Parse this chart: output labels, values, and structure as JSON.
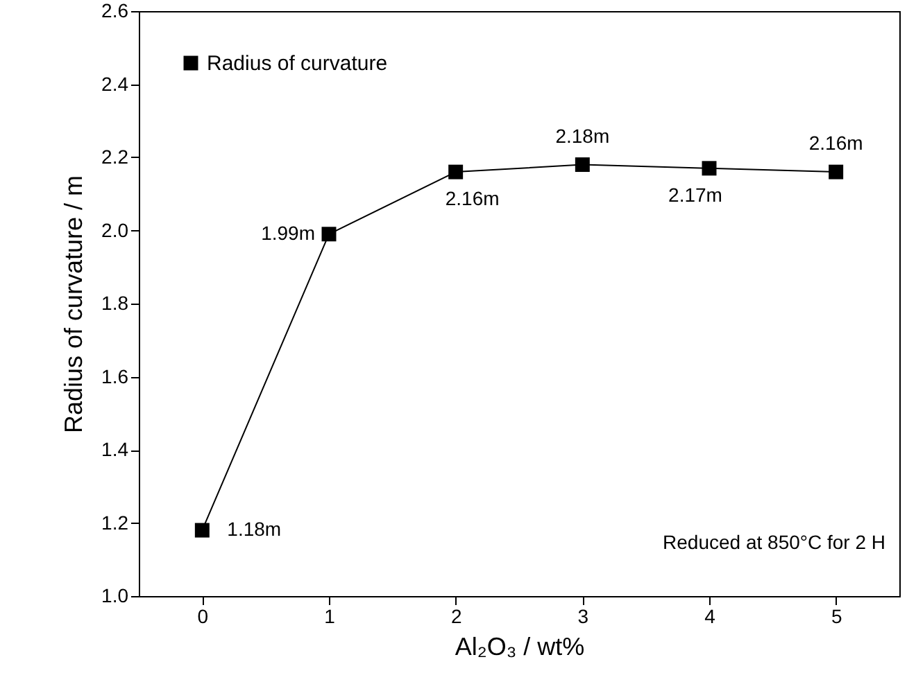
{
  "chart_data": {
    "type": "line",
    "xlabel": "Al₂O₃ / wt%",
    "ylabel": "Radius of curvature / m",
    "x": [
      0,
      1,
      2,
      3,
      4,
      5
    ],
    "series": [
      {
        "name": "Radius of curvature",
        "color": "#000000",
        "values": [
          1.18,
          1.99,
          2.16,
          2.18,
          2.17,
          2.16
        ],
        "value_labels": [
          "1.18m",
          "1.99m",
          "2.16m",
          "2.18m",
          "2.17m",
          "2.16m"
        ]
      }
    ],
    "xlim": [
      -0.5,
      5.5
    ],
    "xticks": [
      0,
      1,
      2,
      3,
      4,
      5
    ],
    "ylim": [
      1.0,
      2.6
    ],
    "yticks": [
      {
        "value": 1.0,
        "label": "1.0"
      },
      {
        "value": 1.2,
        "label": "1.2"
      },
      {
        "value": 1.4,
        "label": "1.4"
      },
      {
        "value": 1.6,
        "label": "1.6"
      },
      {
        "value": 1.8,
        "label": "1.8"
      },
      {
        "value": 2.0,
        "label": "2.0"
      },
      {
        "value": 2.2,
        "label": "2.2"
      },
      {
        "value": 2.4,
        "label": "2.4"
      },
      {
        "value": 2.6,
        "label": "2.6"
      }
    ],
    "annotations": [
      "Reduced at 850°C for 2 H"
    ],
    "grid": false,
    "legend": "top left",
    "marker": "square",
    "line_style": "solid"
  }
}
